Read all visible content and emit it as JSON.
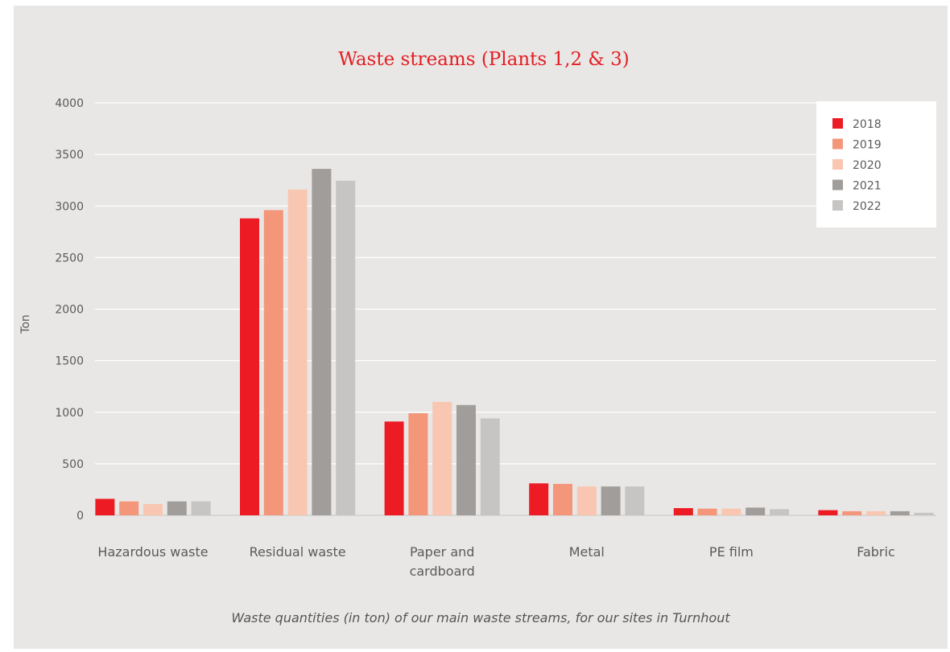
{
  "chart_data": {
    "type": "bar",
    "title": "Waste streams (Plants 1,2 & 3)",
    "ylabel": "Ton",
    "xlabel": "",
    "ylim": [
      0,
      4000
    ],
    "yticks": [
      0,
      500,
      1000,
      1500,
      2000,
      2500,
      3000,
      3500,
      4000
    ],
    "grid": true,
    "legend_position": "top-right",
    "categories": [
      [
        "Hazardous waste"
      ],
      [
        "Residual waste"
      ],
      [
        "Paper and",
        "cardboard"
      ],
      [
        "Metal"
      ],
      [
        "PE film"
      ],
      [
        "Fabric"
      ]
    ],
    "series": [
      {
        "name": "2018",
        "color": "#ed1c24",
        "values": [
          160,
          2880,
          910,
          310,
          70,
          50
        ]
      },
      {
        "name": "2019",
        "color": "#f4967a",
        "values": [
          135,
          2960,
          990,
          305,
          65,
          40
        ]
      },
      {
        "name": "2020",
        "color": "#f9c6b1",
        "values": [
          110,
          3160,
          1100,
          280,
          65,
          40
        ]
      },
      {
        "name": "2021",
        "color": "#a19d9b",
        "values": [
          135,
          3360,
          1070,
          280,
          75,
          40
        ]
      },
      {
        "name": "2022",
        "color": "#c7c5c4",
        "values": [
          135,
          3245,
          940,
          280,
          60,
          25
        ]
      }
    ],
    "caption": "Waste quantities (in ton) of our main waste streams, for our sites in Turnhout"
  }
}
